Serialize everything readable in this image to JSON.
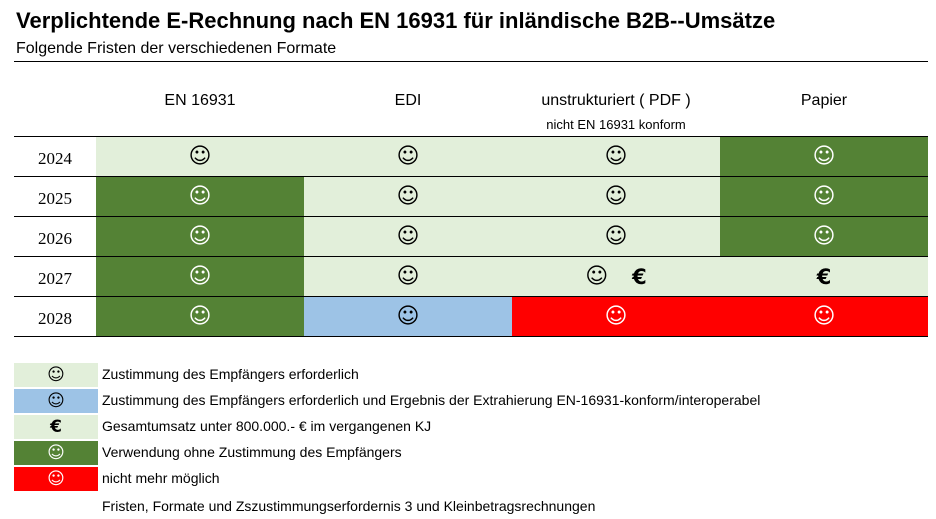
{
  "title": "Verplichtende E-Rechnung nach EN 16931 für inländische B2B--Umsätze",
  "subtitle": "Folgende Fristen der verschiedenen Formate",
  "columns": [
    {
      "label": "EN 16931",
      "sublabel": ""
    },
    {
      "label": "EDI",
      "sublabel": ""
    },
    {
      "label": "unstrukturiert ( PDF )",
      "sublabel": "nicht EN 16931 konform"
    },
    {
      "label": "Papier",
      "sublabel": ""
    }
  ],
  "symbols": {
    "smiley": "☺",
    "euro": "€"
  },
  "colors": {
    "light": "#e2efda",
    "dark": "#548235",
    "blue": "#9dc3e6",
    "red": "#ff0000"
  },
  "rows": [
    {
      "year": "2024",
      "cells": [
        {
          "color": "light",
          "smiley": true,
          "euro": false
        },
        {
          "color": "light",
          "smiley": true,
          "euro": false
        },
        {
          "color": "light",
          "smiley": true,
          "euro": false
        },
        {
          "color": "dark",
          "smiley": true,
          "euro": false
        }
      ]
    },
    {
      "year": "2025",
      "cells": [
        {
          "color": "dark",
          "smiley": true,
          "euro": false
        },
        {
          "color": "light",
          "smiley": true,
          "euro": false
        },
        {
          "color": "light",
          "smiley": true,
          "euro": false
        },
        {
          "color": "dark",
          "smiley": true,
          "euro": false
        }
      ]
    },
    {
      "year": "2026",
      "cells": [
        {
          "color": "dark",
          "smiley": true,
          "euro": false
        },
        {
          "color": "light",
          "smiley": true,
          "euro": false
        },
        {
          "color": "light",
          "smiley": true,
          "euro": false
        },
        {
          "color": "dark",
          "smiley": true,
          "euro": false
        }
      ]
    },
    {
      "year": "2027",
      "cells": [
        {
          "color": "dark",
          "smiley": true,
          "euro": false
        },
        {
          "color": "light",
          "smiley": true,
          "euro": false
        },
        {
          "color": "light",
          "smiley": true,
          "euro": true
        },
        {
          "color": "light",
          "smiley": false,
          "euro": true
        }
      ]
    },
    {
      "year": "2028",
      "cells": [
        {
          "color": "dark",
          "smiley": true,
          "euro": false
        },
        {
          "color": "blue",
          "smiley": true,
          "euro": false
        },
        {
          "color": "red",
          "smiley": true,
          "euro": false
        },
        {
          "color": "red",
          "smiley": true,
          "euro": false
        }
      ]
    }
  ],
  "legend": [
    {
      "color": "light",
      "symbol": "smiley",
      "text": "Zustimmung des Empfängers erforderlich"
    },
    {
      "color": "blue",
      "symbol": "smiley",
      "text": "Zustimmung des Empfängers erforderlich und Ergebnis der Extrahierung EN-16931-konform/interoperabel"
    },
    {
      "color": "light",
      "symbol": "euro",
      "text": "Gesamtumsatz unter 800.000.- € im vergangenen KJ"
    },
    {
      "color": "dark",
      "symbol": "smiley",
      "text": "Verwendung ohne Zustimmung des Empfängers"
    },
    {
      "color": "red",
      "symbol": "smiley",
      "text": "nicht mehr möglich"
    },
    {
      "color": "none",
      "symbol": "",
      "text": "Fristen, Formate und Zszustimmungserfordernis 3 und Kleinbetragsrechnungen"
    }
  ]
}
